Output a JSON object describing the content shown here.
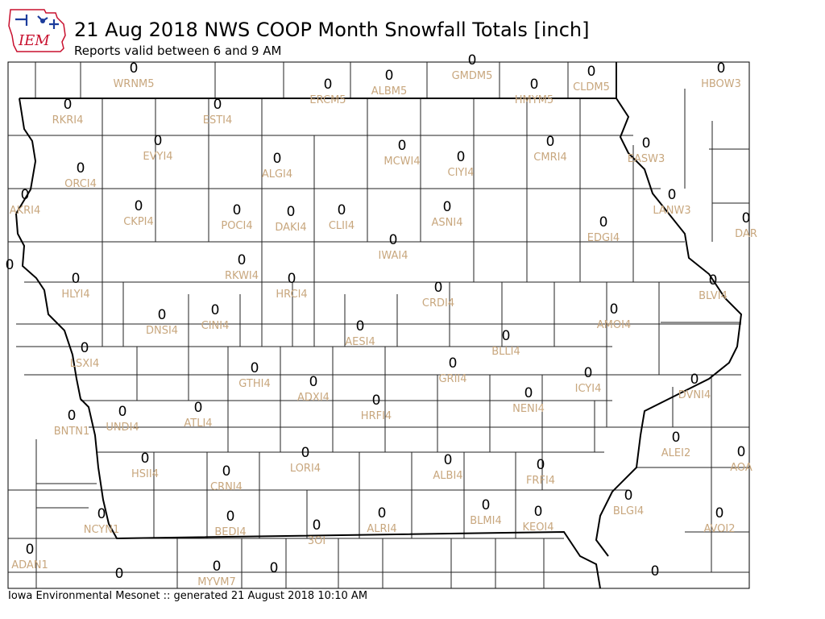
{
  "header": {
    "logo_text": "IEM",
    "title": "21 Aug 2018 NWS COOP Month Snowfall Totals [inch]",
    "subtitle": "Reports valid between 6 and 9 AM"
  },
  "footer": {
    "credit": "Iowa Environmental Mesonet :: generated 21 August 2018 10:10 AM"
  },
  "colors": {
    "station_label": "#c8a77e",
    "value_label": "#000000",
    "state_border": "#000000",
    "county_border": "#222222",
    "logo_blue": "#1c3c9c",
    "logo_red": "#c8102e"
  },
  "stations": [
    {
      "id": "WRNM5",
      "value": "0"
    },
    {
      "id": "GMDM5",
      "value": "0"
    },
    {
      "id": "HBOW3",
      "value": "0"
    },
    {
      "id": "ERCM5",
      "value": "0"
    },
    {
      "id": "ALBM5",
      "value": "0"
    },
    {
      "id": "HMYM5",
      "value": "0"
    },
    {
      "id": "CLDM5",
      "value": "0"
    },
    {
      "id": "RKRI4",
      "value": "0"
    },
    {
      "id": "ESTI4",
      "value": "0"
    },
    {
      "id": "EVYI4",
      "value": "0"
    },
    {
      "id": "ALGI4",
      "value": "0"
    },
    {
      "id": "MCWI4",
      "value": "0"
    },
    {
      "id": "CIYI4",
      "value": "0"
    },
    {
      "id": "CMRI4",
      "value": "0"
    },
    {
      "id": "EASW3",
      "value": "0"
    },
    {
      "id": "ORCI4",
      "value": "0"
    },
    {
      "id": "AKRI4",
      "value": "0"
    },
    {
      "id": "CKPI4",
      "value": "0"
    },
    {
      "id": "POCI4",
      "value": "0"
    },
    {
      "id": "DAKI4",
      "value": "0"
    },
    {
      "id": "CLII4",
      "value": "0"
    },
    {
      "id": "ASNI4",
      "value": "0"
    },
    {
      "id": "LANW3",
      "value": "0"
    },
    {
      "id": "DAR",
      "value": "0"
    },
    {
      "id": "EDGI4",
      "value": "0"
    },
    {
      "id": "IWAI4",
      "value": "0"
    },
    {
      "id": "RKWI4",
      "value": "0"
    },
    {
      "id": "HLYI4",
      "value": "0"
    },
    {
      "id": "HRCI4",
      "value": "0"
    },
    {
      "id": "CRDI4",
      "value": "0"
    },
    {
      "id": "BLVI4",
      "value": "0"
    },
    {
      "id": "DNSI4",
      "value": "0"
    },
    {
      "id": "CINI4",
      "value": "0"
    },
    {
      "id": "AMOI4",
      "value": "0"
    },
    {
      "id": "AESI4",
      "value": "0"
    },
    {
      "id": "BLLI4",
      "value": "0"
    },
    {
      "id": "LSXI4",
      "value": "0"
    },
    {
      "id": "GRII4",
      "value": "0"
    },
    {
      "id": "ICYI4",
      "value": "0"
    },
    {
      "id": "GTHI4",
      "value": "0"
    },
    {
      "id": "ADXI4",
      "value": "0"
    },
    {
      "id": "DVNI4",
      "value": "0"
    },
    {
      "id": "NENI4",
      "value": "0"
    },
    {
      "id": "HRFI4",
      "value": "0"
    },
    {
      "id": "ATLI4",
      "value": "0"
    },
    {
      "id": "UNDI4",
      "value": "0"
    },
    {
      "id": "BNTN1",
      "value": "0"
    },
    {
      "id": "ALEI2",
      "value": "0"
    },
    {
      "id": "AOA",
      "value": "0"
    },
    {
      "id": "HSII4",
      "value": "0"
    },
    {
      "id": "LORI4",
      "value": "0"
    },
    {
      "id": "ALBI4",
      "value": "0"
    },
    {
      "id": "FRFI4",
      "value": "0"
    },
    {
      "id": "CRNI4",
      "value": "0"
    },
    {
      "id": "BLGI4",
      "value": "0"
    },
    {
      "id": "NCYN1",
      "value": "0"
    },
    {
      "id": "BEDI4",
      "value": "0"
    },
    {
      "id": "ALRI4",
      "value": "0"
    },
    {
      "id": "BLMI4",
      "value": "0"
    },
    {
      "id": "KEOI4",
      "value": "0"
    },
    {
      "id": "AVOI2",
      "value": "0"
    },
    {
      "id": "3OI",
      "value": "0"
    },
    {
      "id": "ADAN1",
      "value": "0"
    },
    {
      "id": "MYVM7",
      "value": "0"
    },
    {
      "id": "",
      "value": "0"
    },
    {
      "id": "",
      "value": "0"
    },
    {
      "id": "",
      "value": "0"
    },
    {
      "id": "",
      "value": "0"
    },
    {
      "id": "",
      "value": "0"
    }
  ]
}
